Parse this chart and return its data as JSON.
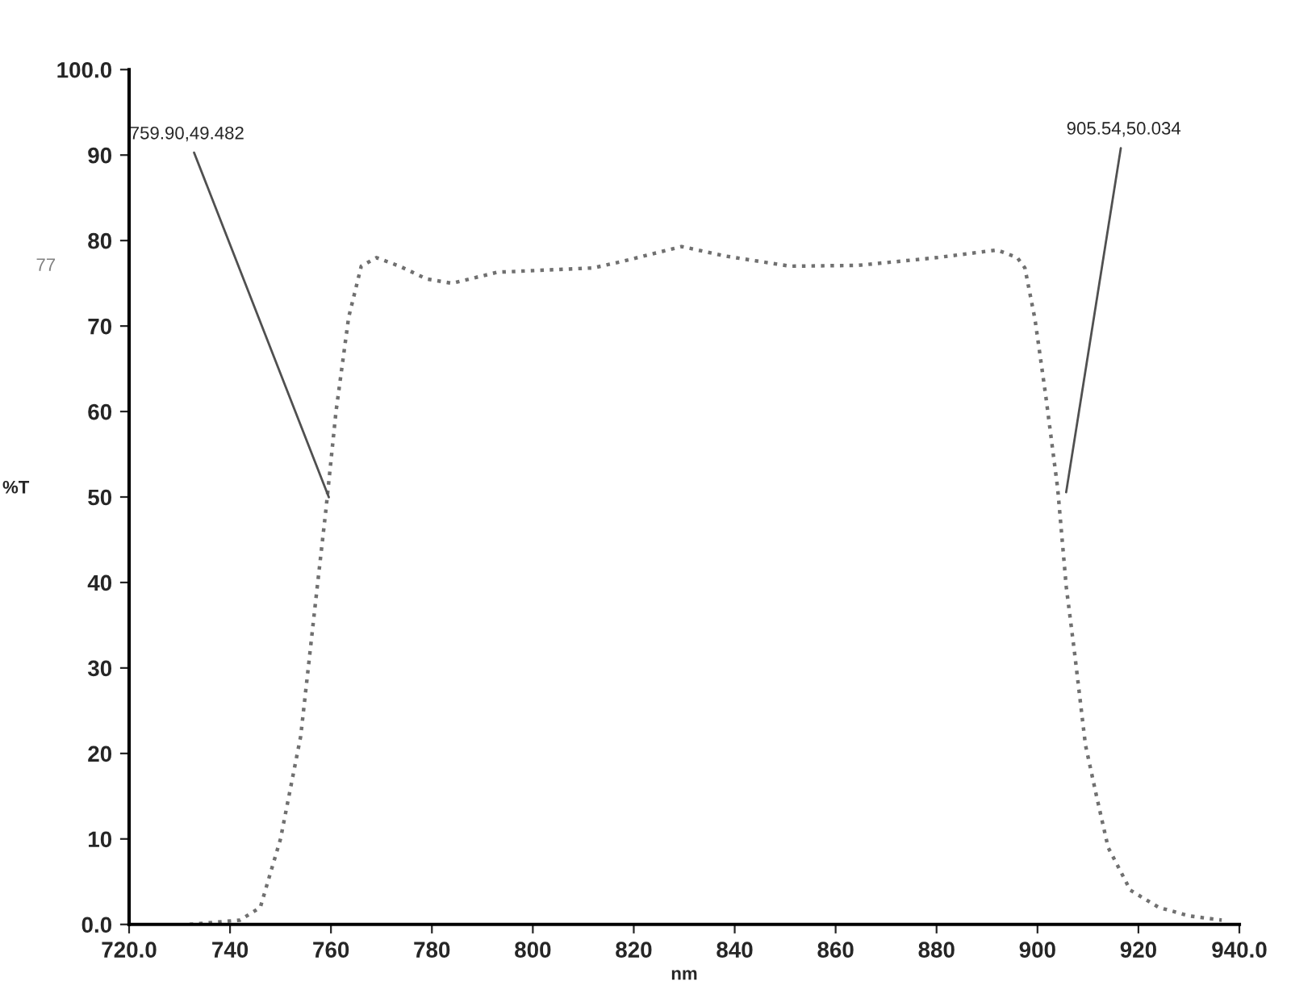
{
  "chart_data": {
    "type": "line",
    "xlabel": "nm",
    "ylabel": "%T",
    "x": [
      732,
      742,
      746,
      750,
      754,
      757,
      759,
      761,
      763.5,
      766,
      769,
      773.6,
      779,
      784,
      793,
      797,
      812,
      818,
      829.5,
      838,
      851,
      864.5,
      880,
      892,
      896,
      897.5,
      899.5,
      901.6,
      904,
      905.7,
      907.3,
      909.5,
      911.7,
      914,
      918.4,
      924,
      930,
      936.5
    ],
    "series": [
      {
        "color": "#707070",
        "values": [
          0,
          0.5,
          2,
          10,
          22,
          38,
          48.5,
          60,
          71,
          77,
          78,
          77,
          75.5,
          75,
          76.3,
          76.4,
          76.8,
          77.6,
          79.3,
          78.2,
          77,
          77.1,
          78,
          78.9,
          78,
          76.8,
          70.8,
          62,
          51,
          39.5,
          32,
          21,
          15,
          9,
          4,
          2,
          1,
          0.5
        ]
      }
    ],
    "xlim": [
      720,
      940
    ],
    "xticks": [
      {
        "value": 720,
        "label": "720.0"
      },
      740,
      760,
      780,
      800,
      820,
      840,
      860,
      880,
      900,
      920,
      {
        "value": 940,
        "label": "940.0"
      }
    ],
    "ylim": [
      0,
      100
    ],
    "yticks": [
      {
        "value": 0,
        "label": "0.0"
      },
      10,
      20,
      30,
      40,
      50,
      60,
      70,
      80,
      90,
      {
        "value": 100,
        "label": "100.0"
      }
    ],
    "line_style": "dotted",
    "marker": "none",
    "grid": false,
    "legend": false,
    "annotations": [
      {
        "text": "759.90,49.482",
        "x": 759.9,
        "y": 49.482
      },
      {
        "text": "905.54,50.034",
        "x": 905.54,
        "y": 50.034
      },
      "77"
    ]
  }
}
